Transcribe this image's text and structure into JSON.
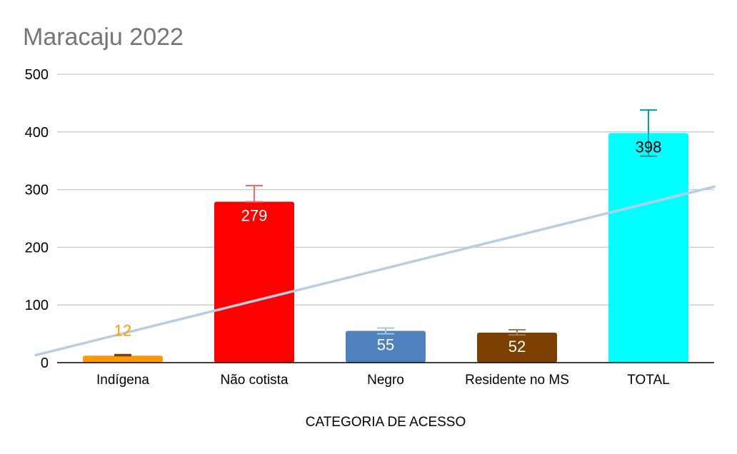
{
  "chart_data": {
    "type": "bar",
    "title": "Maracaju 2022",
    "xlabel": "CATEGORIA DE ACESSO",
    "ylabel": "",
    "ylim": [
      0,
      500
    ],
    "yticks": [
      0,
      100,
      200,
      300,
      400,
      500
    ],
    "grid": true,
    "categories": [
      "Indígena",
      "Não cotista",
      "Negro",
      "Residente no MS",
      "TOTAL"
    ],
    "values": [
      12,
      279,
      55,
      52,
      398
    ],
    "data_labels": [
      "12",
      "279",
      "55",
      "52",
      "398"
    ],
    "colors": [
      "#FF9900",
      "#FF0000",
      "#4F81BD",
      "#7B3F00",
      "#00FFFF"
    ],
    "error_bars": [
      {
        "low": 12,
        "high": 14
      },
      {
        "low": 279,
        "high": 307
      },
      {
        "low": 50,
        "high": 60
      },
      {
        "low": 48,
        "high": 57
      },
      {
        "low": 358,
        "high": 438
      }
    ],
    "error_bar_colors": [
      "#7B3F00",
      "#FF6666",
      "#A9C4E4",
      "#A87A5A",
      "#00A0A0"
    ],
    "trendline": {
      "type": "linear",
      "color": "#B8CCE4",
      "start_value": 13,
      "end_value": 305
    }
  }
}
